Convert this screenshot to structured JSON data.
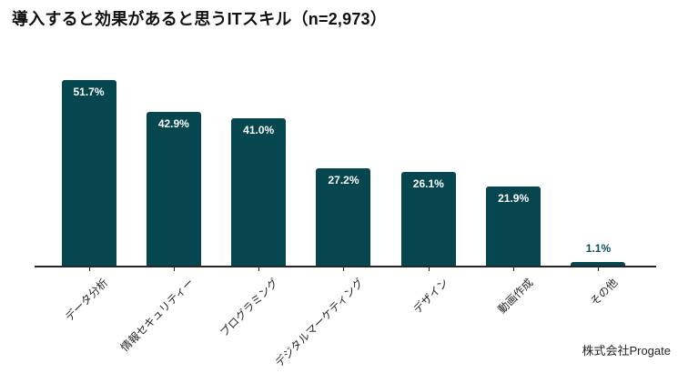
{
  "header": {
    "title": "導入すると効果があると思うITスキル（n=2,973）"
  },
  "chart_data": {
    "type": "bar",
    "title": "導入すると効果があると思うITスキル（n=2,973）",
    "categories": [
      "データ分析",
      "情報セキュリティー",
      "プログラミング",
      "デジタルマーケティング",
      "デザイン",
      "動画作成",
      "その他"
    ],
    "values": [
      51.7,
      42.9,
      41.0,
      27.2,
      26.1,
      21.9,
      1.1
    ],
    "value_labels": [
      "51.7%",
      "42.9%",
      "41.0%",
      "27.2%",
      "26.1%",
      "21.9%",
      "1.1%"
    ],
    "xlabel": "",
    "ylabel": "",
    "ylim": [
      0,
      57
    ],
    "grid": false,
    "legend": null,
    "bar_color": "#05464f",
    "value_label_color_inside": "#ffffff",
    "value_label_color_outside": "#0b4f5a",
    "axis_color": "#262626",
    "tick_label_rotation_deg": 45
  },
  "footer": {
    "credit": "株式会社Progate"
  }
}
